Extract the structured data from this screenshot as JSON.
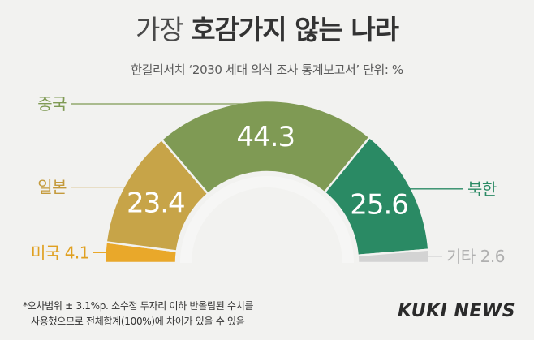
{
  "title": {
    "light": "가장",
    "bold": "호감가지 않는 나라"
  },
  "subtitle": "한길리서치 ‘2030 세대 의식 조사 통계보고서’ 단위: %",
  "chart_data": {
    "type": "pie",
    "subtype": "semi-donut",
    "unit": "%",
    "slices": [
      {
        "label": "미국",
        "value": 4.1,
        "value_label": "4.1",
        "color": "#e9a82a",
        "label_color": "#e0a020",
        "value_display": "outside"
      },
      {
        "label": "일본",
        "value": 23.4,
        "value_label": "23.4",
        "color": "#c7a448",
        "label_color": "#c49a3c",
        "value_display": "inside"
      },
      {
        "label": "중국",
        "value": 44.3,
        "value_label": "44.3",
        "color": "#7f9a54",
        "label_color": "#7f9a54",
        "value_display": "inside"
      },
      {
        "label": "북한",
        "value": 25.6,
        "value_label": "25.6",
        "color": "#2a8a64",
        "label_color": "#2a8a64",
        "value_display": "inside"
      },
      {
        "label": "기타",
        "value": 2.6,
        "value_label": "2.6",
        "color": "#d3d3d3",
        "label_color": "#b0b0b0",
        "value_display": "outside"
      }
    ]
  },
  "footnote": {
    "line1": "*오차범위 ± 3.1%p. 소수점 두자리 이하 반올림된 수치를",
    "line2": "사용했으므로 전체합계(100%)에 차이가 있을 수 있음"
  },
  "logo": "KUKI NEWS"
}
